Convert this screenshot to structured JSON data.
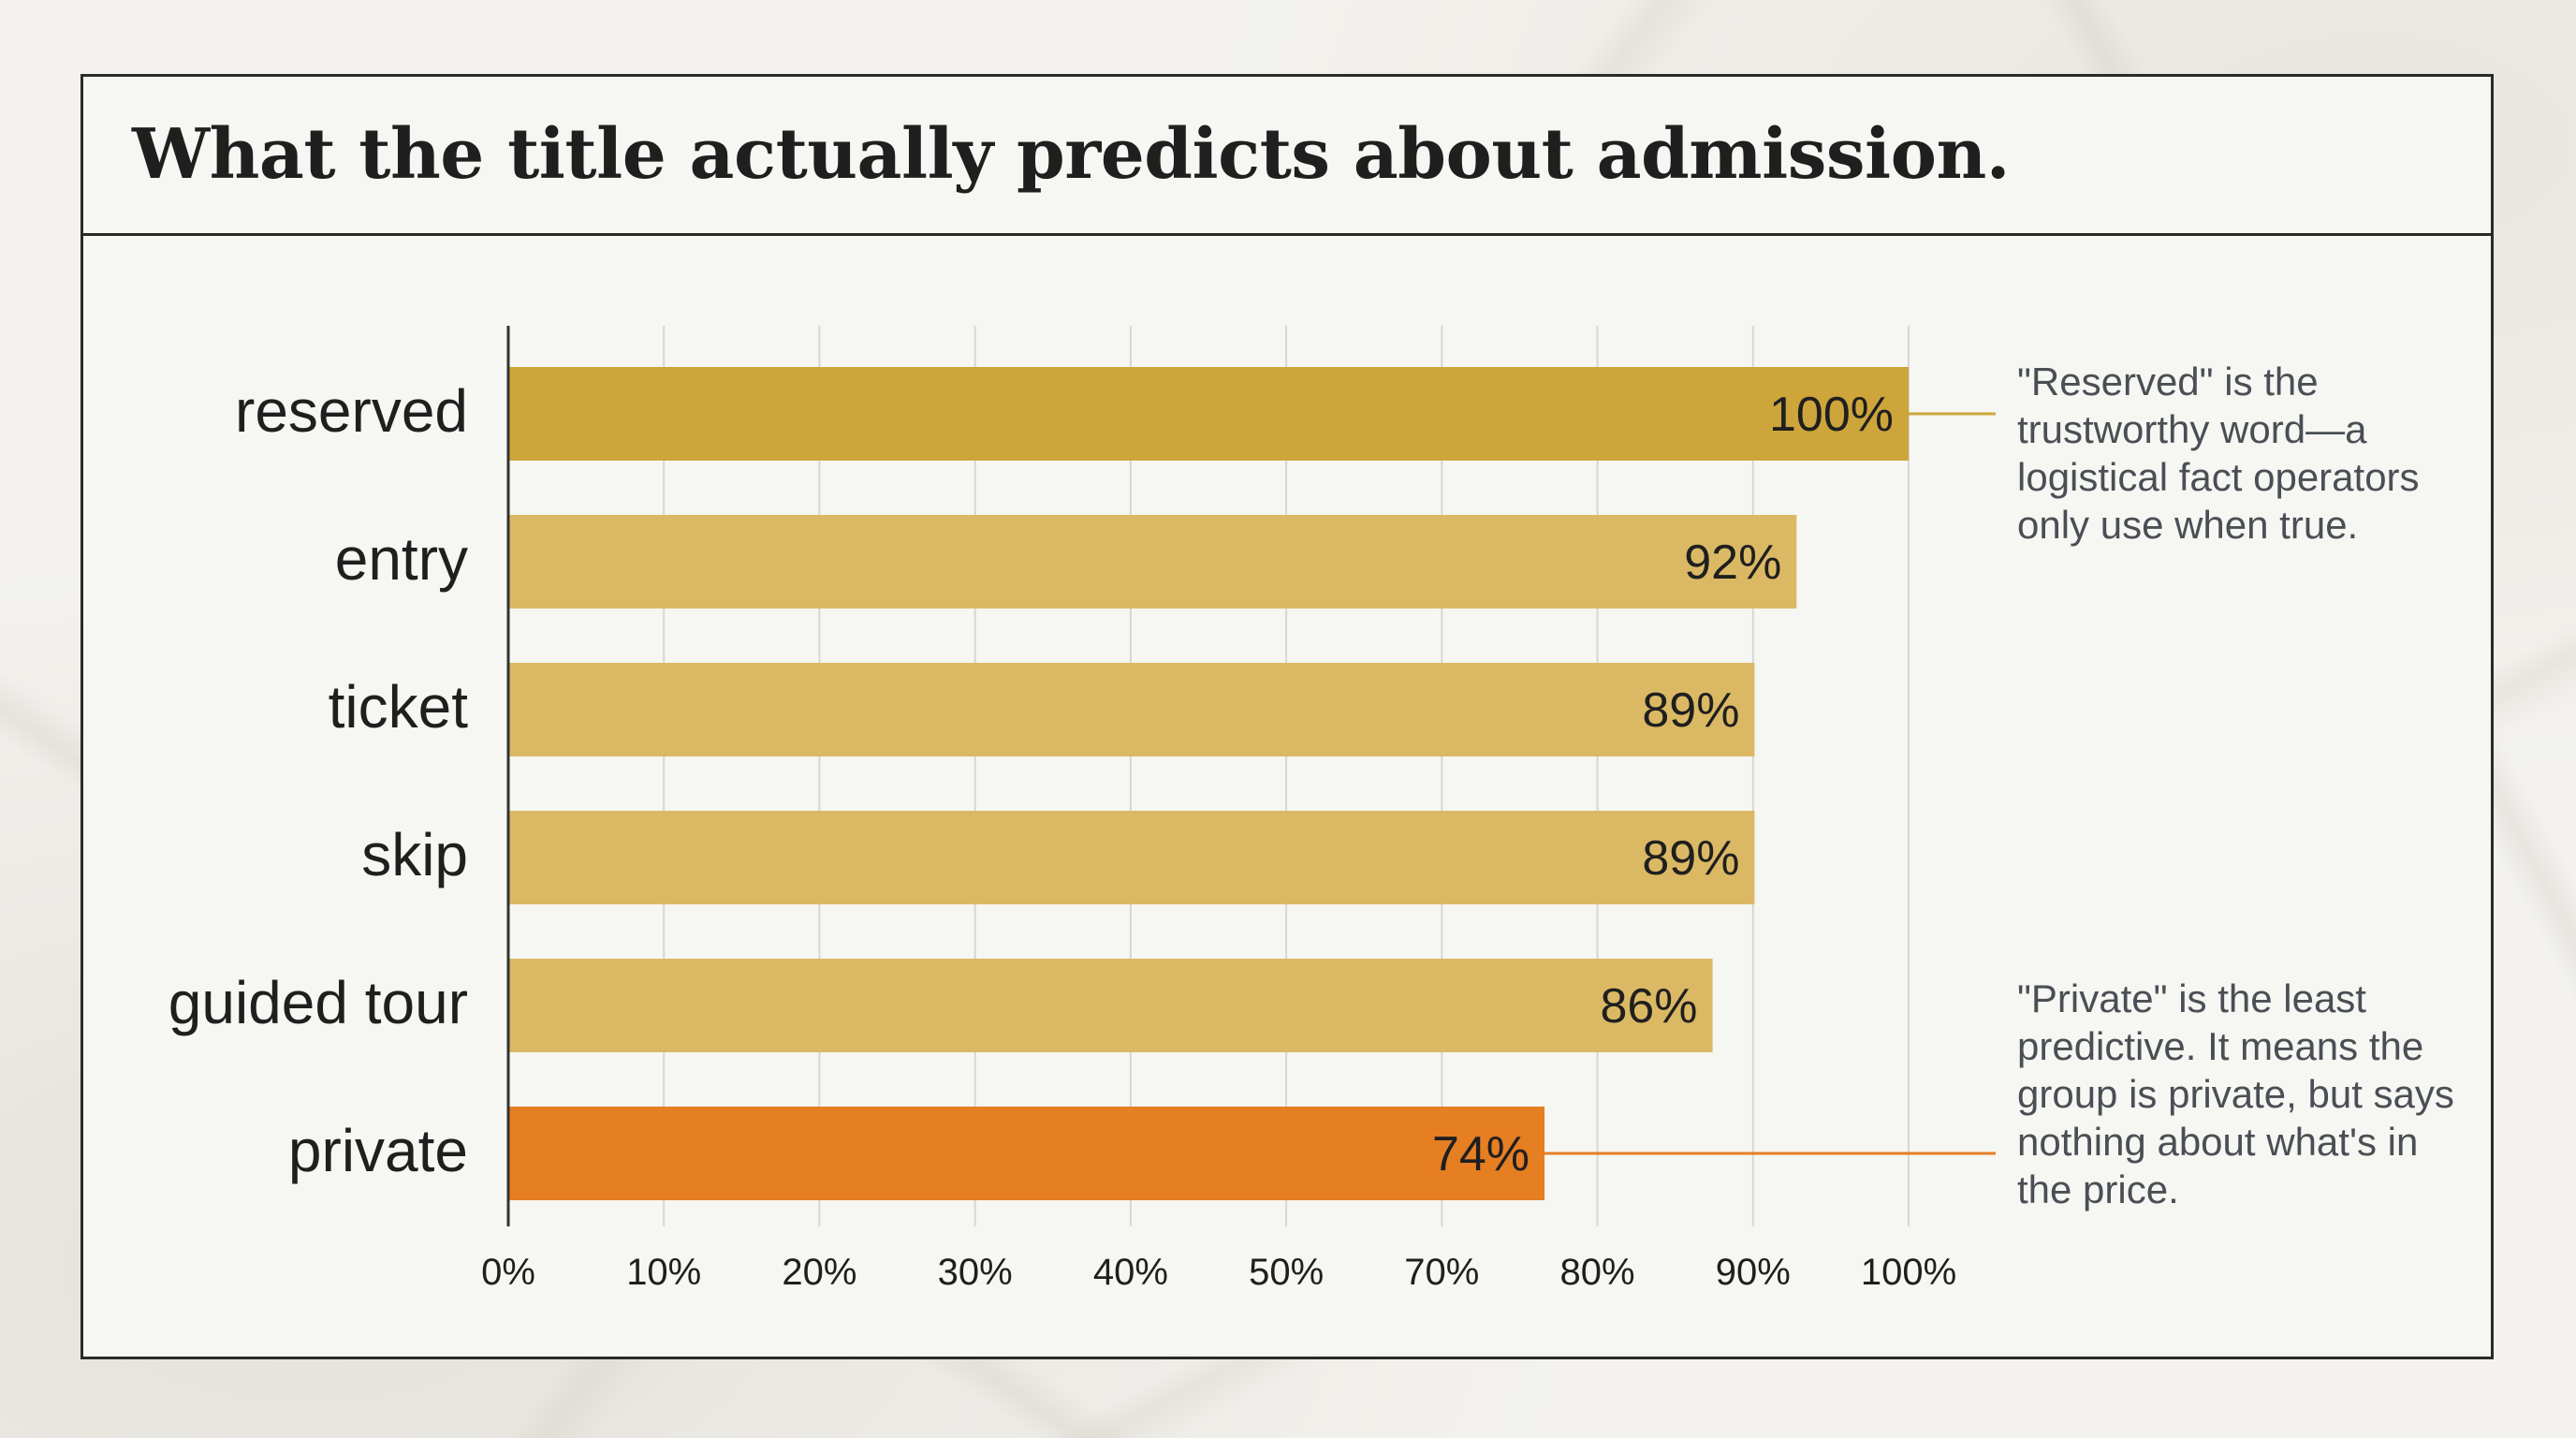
{
  "title": "What the title actually predicts about admission.",
  "colors": {
    "top_bar": "#cda53a",
    "bar": "#dbb964",
    "highlight_bar": "#e67e22",
    "gridline": "#d6d6d2",
    "axis": "#333333",
    "label_text": "#1f1f1f",
    "note_text": "#4a4f55"
  },
  "annotations": {
    "reserved": "\"Reserved\" is the trustworthy word—a logistical fact operators only use when true.",
    "private": "\"Private\" is the least predictive. It means the group is private, but says nothing about what's in the price."
  },
  "chart_data": {
    "type": "bar",
    "orientation": "horizontal",
    "categories": [
      "reserved",
      "entry",
      "ticket",
      "skip",
      "guided tour",
      "private"
    ],
    "values": [
      100,
      92,
      89,
      89,
      86,
      74
    ],
    "value_labels": [
      "100%",
      "92%",
      "89%",
      "89%",
      "86%",
      "74%"
    ],
    "highlight": [
      "top",
      "normal",
      "normal",
      "normal",
      "normal",
      "warning"
    ],
    "x_ticks": [
      "0%",
      "10%",
      "20%",
      "30%",
      "40%",
      "50%",
      "70%",
      "80%",
      "90%",
      "100%"
    ],
    "xlim": [
      0,
      100
    ],
    "grid": true,
    "legend": "none",
    "xlabel": "",
    "ylabel": ""
  }
}
